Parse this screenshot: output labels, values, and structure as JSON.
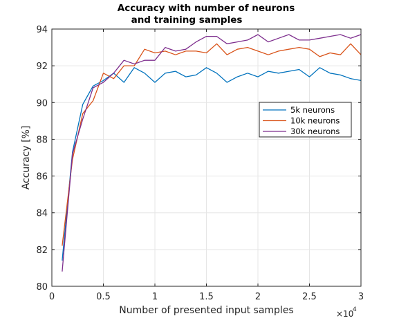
{
  "chart_data": {
    "type": "line",
    "title": [
      "Accuracy with number of neurons",
      "and training samples"
    ],
    "xlabel": "Number of presented input samples",
    "ylabel": "Accuracy [%]",
    "x_exponent": {
      "base": "×10",
      "power": "4"
    },
    "xlim": [
      0,
      3
    ],
    "ylim": [
      80,
      94
    ],
    "xticks": [
      0,
      0.5,
      1,
      1.5,
      2,
      2.5,
      3
    ],
    "xtick_labels": [
      "0",
      "0.5",
      "1",
      "1.5",
      "2",
      "2.5",
      "3"
    ],
    "yticks": [
      80,
      82,
      84,
      86,
      88,
      90,
      92,
      94
    ],
    "ytick_labels": [
      "80",
      "82",
      "84",
      "86",
      "88",
      "90",
      "92",
      "94"
    ],
    "grid": true,
    "legend_position": "right, upper-middle",
    "x": [
      0.1,
      0.2,
      0.3,
      0.4,
      0.5,
      0.6,
      0.7,
      0.8,
      0.9,
      1.0,
      1.1,
      1.2,
      1.3,
      1.4,
      1.5,
      1.6,
      1.7,
      1.8,
      1.9,
      2.0,
      2.1,
      2.2,
      2.3,
      2.4,
      2.5,
      2.6,
      2.7,
      2.8,
      2.9,
      3.0
    ],
    "series": [
      {
        "name": "5k neurons",
        "color": "#0072BD",
        "values": [
          81.4,
          87.3,
          89.9,
          90.9,
          91.2,
          91.6,
          91.1,
          91.9,
          91.6,
          91.1,
          91.6,
          91.7,
          91.4,
          91.5,
          91.9,
          91.6,
          91.1,
          91.4,
          91.6,
          91.4,
          91.7,
          91.6,
          91.7,
          91.8,
          91.4,
          91.9,
          91.6,
          91.5,
          91.3,
          91.2
        ]
      },
      {
        "name": "10k neurons",
        "color": "#D95319",
        "values": [
          82.2,
          86.9,
          89.4,
          90.1,
          91.6,
          91.3,
          92.0,
          92.0,
          92.9,
          92.7,
          92.8,
          92.6,
          92.8,
          92.8,
          92.7,
          93.2,
          92.6,
          92.9,
          93.0,
          92.8,
          92.6,
          92.8,
          92.9,
          93.0,
          92.9,
          92.5,
          92.7,
          92.6,
          93.2,
          92.6
        ]
      },
      {
        "name": "30k neurons",
        "color": "#7E2F8E",
        "values": [
          80.8,
          87.2,
          89.1,
          90.8,
          91.1,
          91.6,
          92.3,
          92.1,
          92.3,
          92.3,
          93.0,
          92.8,
          92.9,
          93.3,
          93.6,
          93.6,
          93.2,
          93.3,
          93.4,
          93.7,
          93.3,
          93.5,
          93.7,
          93.4,
          93.4,
          93.5,
          93.6,
          93.7,
          93.5,
          93.7
        ]
      }
    ]
  }
}
